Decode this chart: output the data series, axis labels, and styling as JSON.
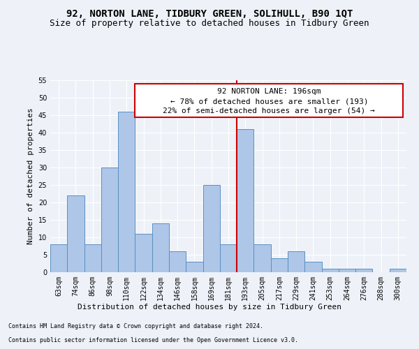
{
  "title": "92, NORTON LANE, TIDBURY GREEN, SOLIHULL, B90 1QT",
  "subtitle": "Size of property relative to detached houses in Tidbury Green",
  "xlabel": "Distribution of detached houses by size in Tidbury Green",
  "ylabel": "Number of detached properties",
  "footnote1": "Contains HM Land Registry data © Crown copyright and database right 2024.",
  "footnote2": "Contains public sector information licensed under the Open Government Licence v3.0.",
  "bar_labels": [
    "63sqm",
    "74sqm",
    "86sqm",
    "98sqm",
    "110sqm",
    "122sqm",
    "134sqm",
    "146sqm",
    "158sqm",
    "169sqm",
    "181sqm",
    "193sqm",
    "205sqm",
    "217sqm",
    "229sqm",
    "241sqm",
    "253sqm",
    "264sqm",
    "276sqm",
    "288sqm",
    "300sqm"
  ],
  "bar_values": [
    8,
    22,
    8,
    30,
    46,
    11,
    14,
    6,
    3,
    25,
    8,
    41,
    8,
    4,
    6,
    3,
    1,
    1,
    1,
    0,
    1
  ],
  "bar_color": "#aec6e8",
  "bar_edge_color": "#5a8fc2",
  "vline_index": 11,
  "vline_color": "#cc0000",
  "annotation_title": "92 NORTON LANE: 196sqm",
  "annotation_line1": "← 78% of detached houses are smaller (193)",
  "annotation_line2": "22% of semi-detached houses are larger (54) →",
  "annotation_box_color": "#cc0000",
  "ylim": [
    0,
    55
  ],
  "yticks": [
    0,
    5,
    10,
    15,
    20,
    25,
    30,
    35,
    40,
    45,
    50,
    55
  ],
  "background_color": "#eef2f8",
  "grid_color": "#ffffff",
  "title_fontsize": 10,
  "subtitle_fontsize": 9,
  "ylabel_fontsize": 8,
  "xlabel_fontsize": 8,
  "tick_fontsize": 7,
  "annotation_fontsize": 8,
  "footnote_fontsize": 6
}
